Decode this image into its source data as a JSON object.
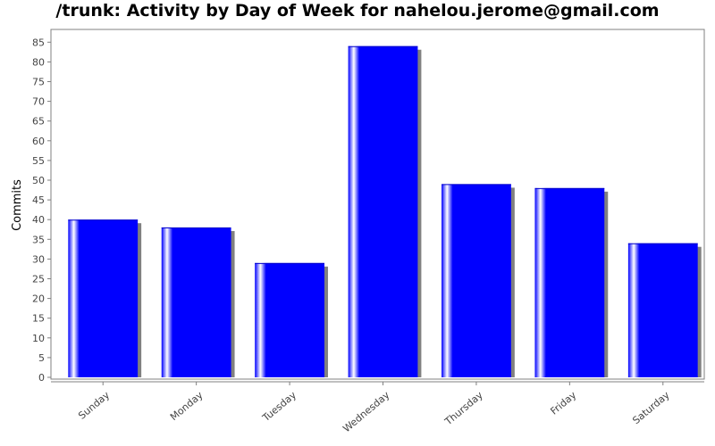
{
  "chart_data": {
    "type": "bar",
    "title": "/trunk: Activity by Day of Week for nahelou.jerome@gmail.com",
    "xlabel": "",
    "ylabel": "Commits",
    "categories": [
      "Sunday",
      "Monday",
      "Tuesday",
      "Wednesday",
      "Thursday",
      "Friday",
      "Saturday"
    ],
    "values": [
      40,
      38,
      29,
      84,
      49,
      48,
      34
    ],
    "ylim": [
      0,
      87
    ],
    "yticks": [
      0,
      5,
      10,
      15,
      20,
      25,
      30,
      35,
      40,
      45,
      50,
      55,
      60,
      65,
      70,
      75,
      80,
      85
    ],
    "grid": false,
    "legend": "none",
    "colors": {
      "bar": "#0000ff",
      "bar_highlight": "#ffffff",
      "shadow": "#808080",
      "axis": "#808080"
    }
  }
}
